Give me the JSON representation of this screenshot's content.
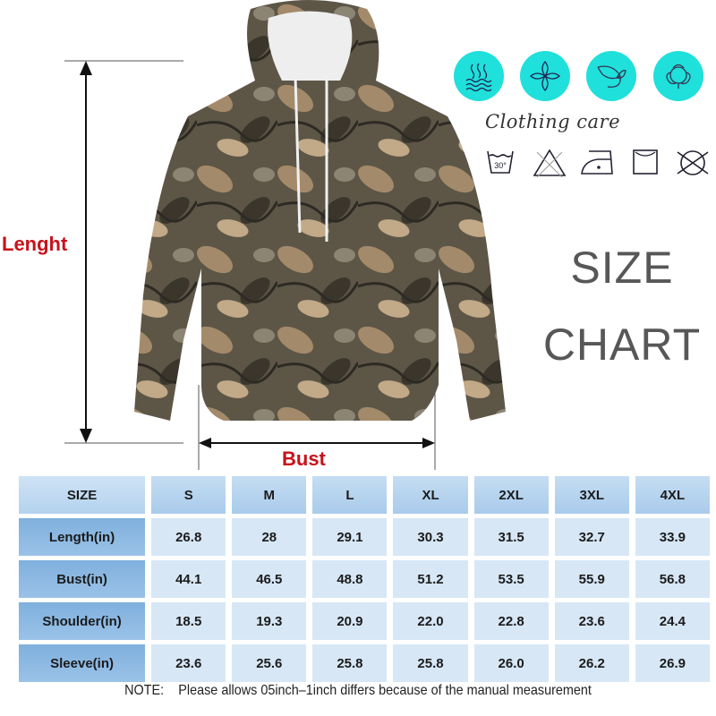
{
  "labels": {
    "length": "Lenght",
    "bust": "Bust"
  },
  "care": {
    "feature_icons": [
      "hot-water-icon",
      "flower-icon",
      "leaf-icon",
      "cotton-icon"
    ],
    "title": "Clothing care",
    "symbols": [
      "wash-30-icon",
      "no-bleach-icon",
      "iron-low-icon",
      "tumble-dry-icon",
      "no-dry-clean-icon"
    ],
    "wash_temp": "30°",
    "accent": "#1fe0da"
  },
  "heading": {
    "line1": "SIZE",
    "line2": "CHART"
  },
  "table": {
    "header": [
      "SIZE",
      "S",
      "M",
      "L",
      "XL",
      "2XL",
      "3XL",
      "4XL"
    ],
    "rows": [
      {
        "label": "Length(in)",
        "values": [
          "26.8",
          "28",
          "29.1",
          "30.3",
          "31.5",
          "32.7",
          "33.9"
        ]
      },
      {
        "label": "Bust(in)",
        "values": [
          "44.1",
          "46.5",
          "48.8",
          "51.2",
          "53.5",
          "55.9",
          "56.8"
        ]
      },
      {
        "label": "Shoulder(in)",
        "values": [
          "18.5",
          "19.3",
          "20.9",
          "22.0",
          "22.8",
          "23.6",
          "24.4"
        ]
      },
      {
        "label": "Sleeve(in)",
        "values": [
          "23.6",
          "25.6",
          "25.8",
          "25.8",
          "26.0",
          "26.2",
          "26.9"
        ]
      }
    ]
  },
  "note": {
    "prefix": "NOTE:",
    "text": "Please allows 05inch–1inch differs because of the manual measurement"
  }
}
